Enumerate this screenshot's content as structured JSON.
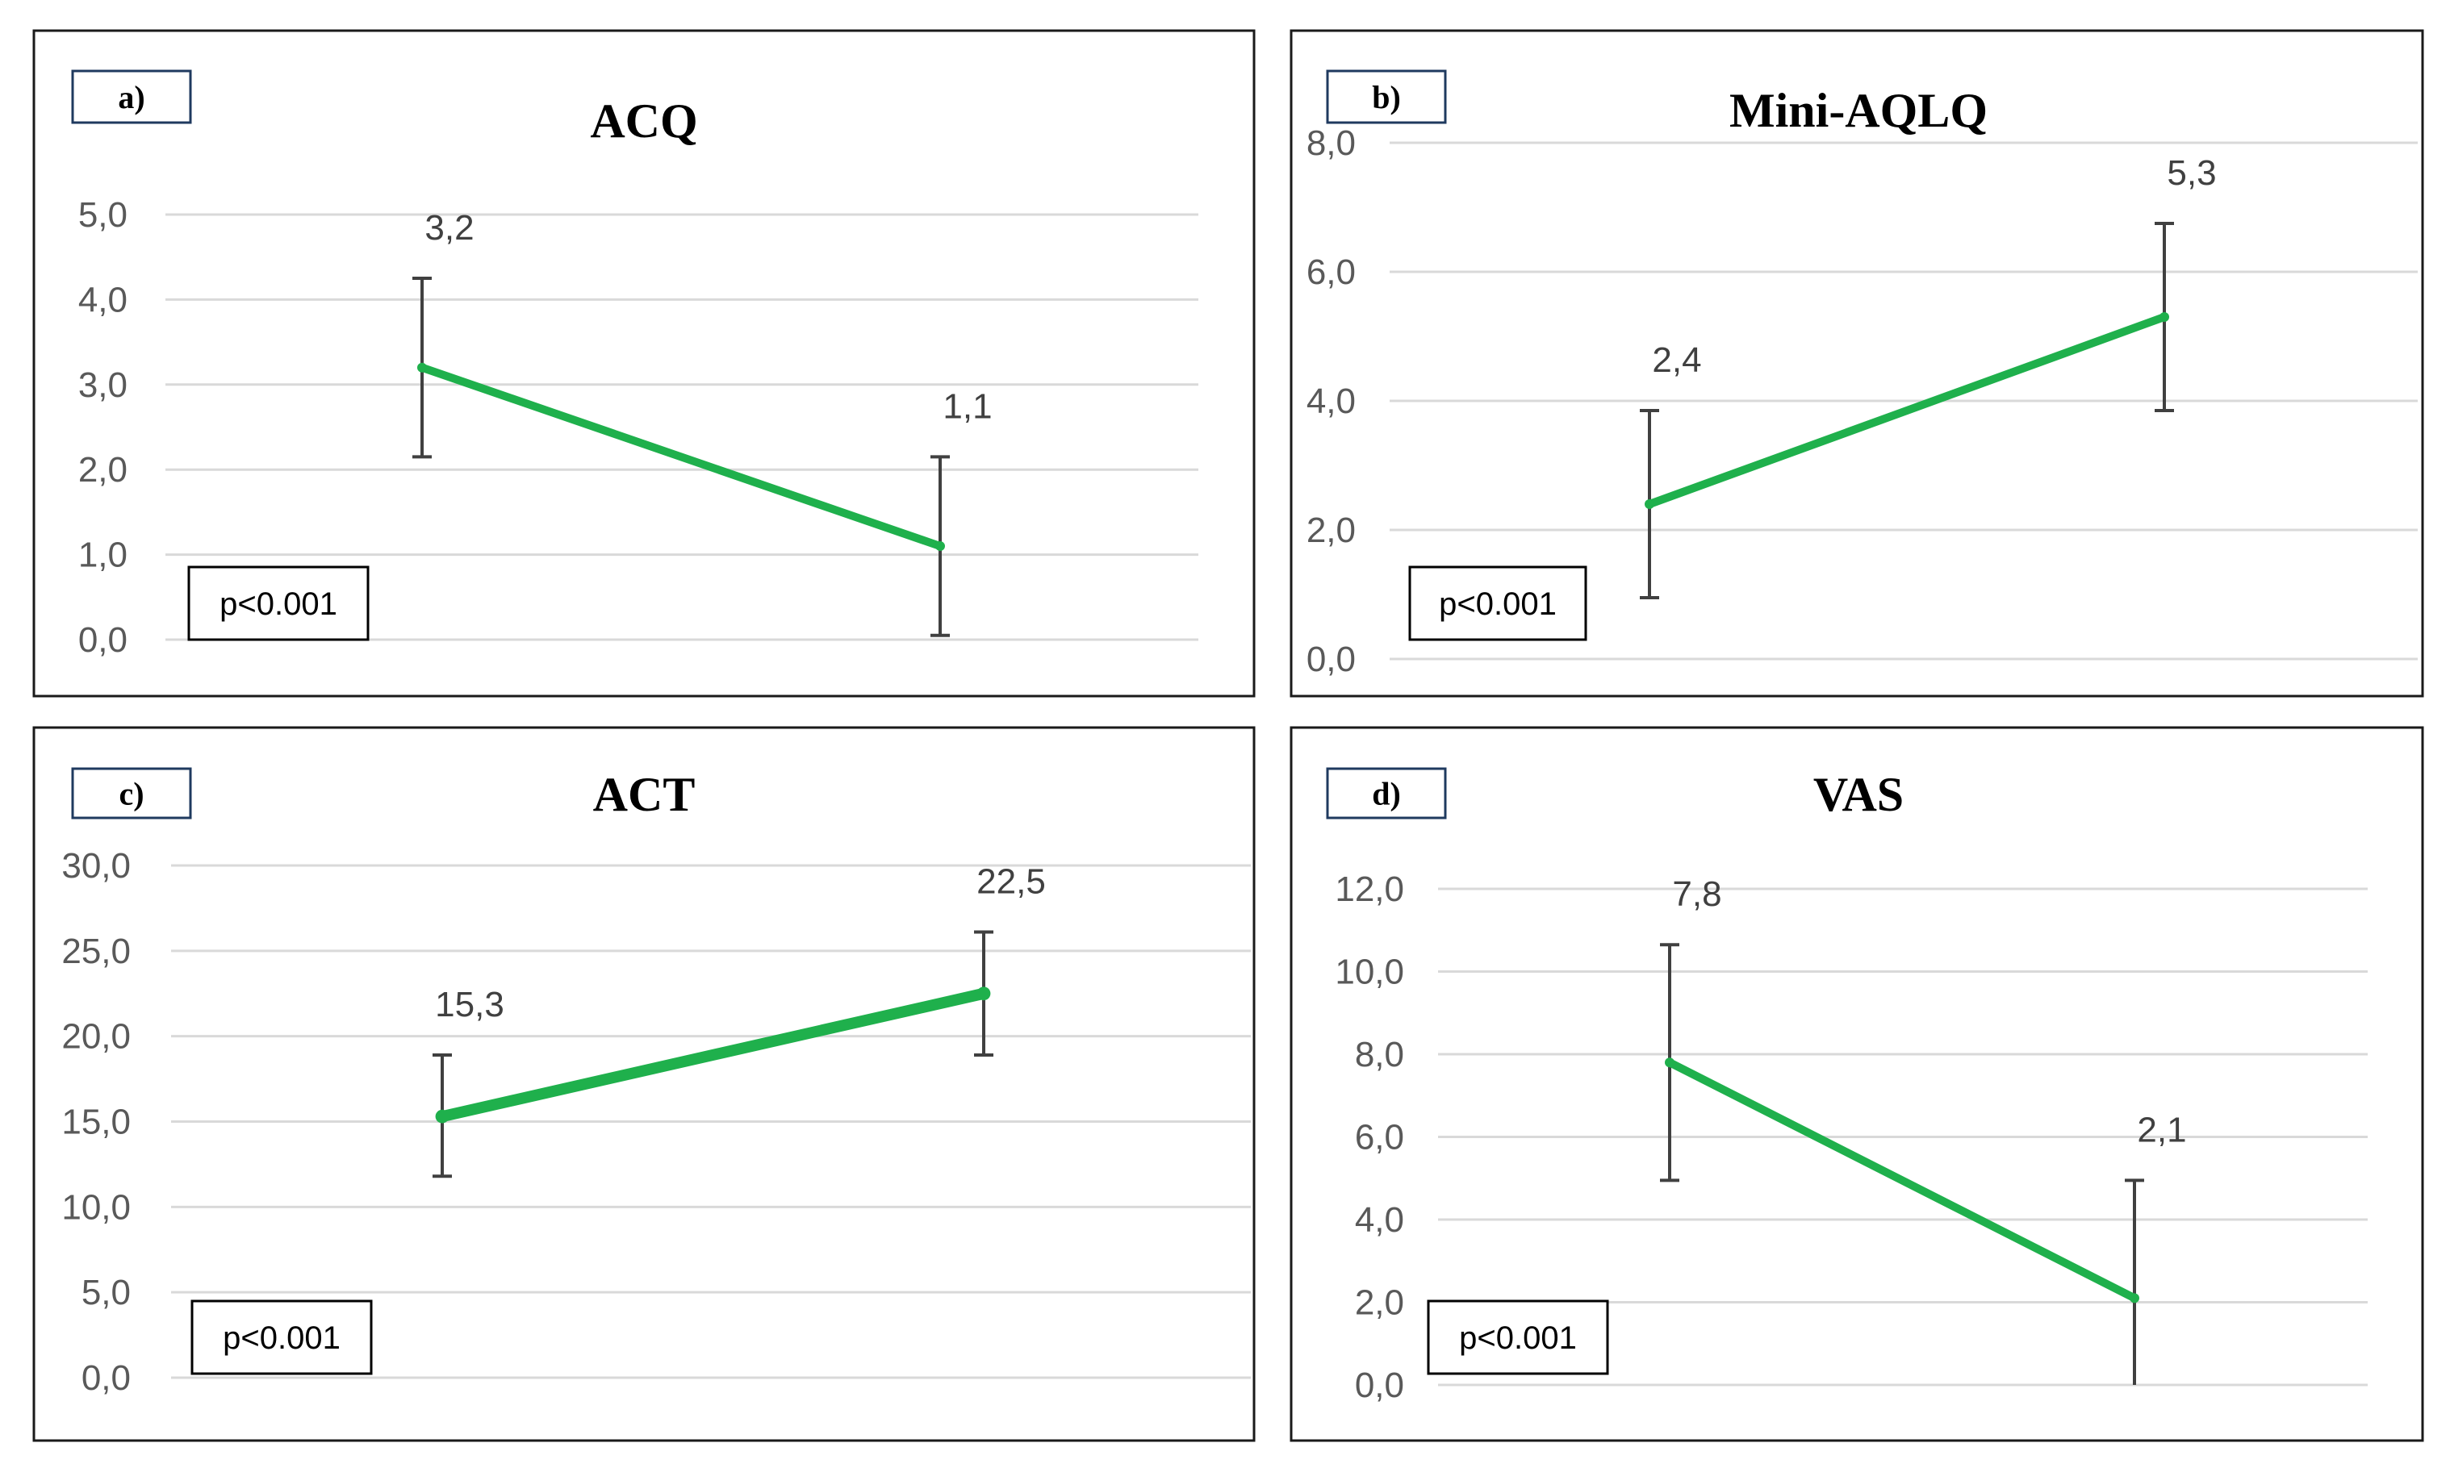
{
  "colors": {
    "series": "#1fb04c",
    "error_bar": "#404040",
    "grid": "#d9d9d9"
  },
  "chart_data": [
    {
      "type": "line",
      "tag": "a)",
      "title": "ACQ",
      "ylim": [
        0,
        5
      ],
      "y_ticks": [
        "0,0",
        "1,0",
        "2,0",
        "3,0",
        "4,0",
        "5,0"
      ],
      "grid": true,
      "series": [
        {
          "values": [
            3.2,
            1.1
          ],
          "error_low": [
            2.15,
            0.05
          ],
          "error_high": [
            4.25,
            2.15
          ],
          "labels": [
            "3,2",
            "1,1"
          ]
        }
      ],
      "annotation": "p<0.001"
    },
    {
      "type": "line",
      "tag": "b)",
      "title": "Mini-AQLQ",
      "ylim": [
        0,
        8
      ],
      "y_ticks": [
        "0,0",
        "2,0",
        "4,0",
        "6,0",
        "8,0"
      ],
      "grid": true,
      "series": [
        {
          "values": [
            2.4,
            5.3
          ],
          "error_low": [
            0.95,
            3.85
          ],
          "error_high": [
            3.85,
            6.75
          ],
          "labels": [
            "2,4",
            "5,3"
          ]
        }
      ],
      "annotation": "p<0.001"
    },
    {
      "type": "line",
      "tag": "c)",
      "title": "ACT",
      "ylim": [
        0,
        30
      ],
      "y_ticks": [
        "0,0",
        "5,0",
        "10,0",
        "15,0",
        "20,0",
        "25,0",
        "30,0"
      ],
      "grid": true,
      "series": [
        {
          "values": [
            15.3,
            22.5
          ],
          "error_low": [
            11.8,
            18.9
          ],
          "error_high": [
            18.9,
            26.1
          ],
          "labels": [
            "15,3",
            "22,5"
          ]
        }
      ],
      "annotation": "p<0.001"
    },
    {
      "type": "line",
      "tag": "d)",
      "title": "VAS",
      "ylim": [
        0,
        12
      ],
      "y_ticks": [
        "0,0",
        "2,0",
        "4,0",
        "6,0",
        "8,0",
        "10,0",
        "12,0"
      ],
      "grid": true,
      "series": [
        {
          "values": [
            7.8,
            2.1
          ],
          "error_low": [
            4.95,
            0.0
          ],
          "error_high": [
            10.65,
            4.95
          ],
          "labels": [
            "7,8",
            "2,1"
          ]
        }
      ],
      "annotation": "p<0.001"
    }
  ]
}
